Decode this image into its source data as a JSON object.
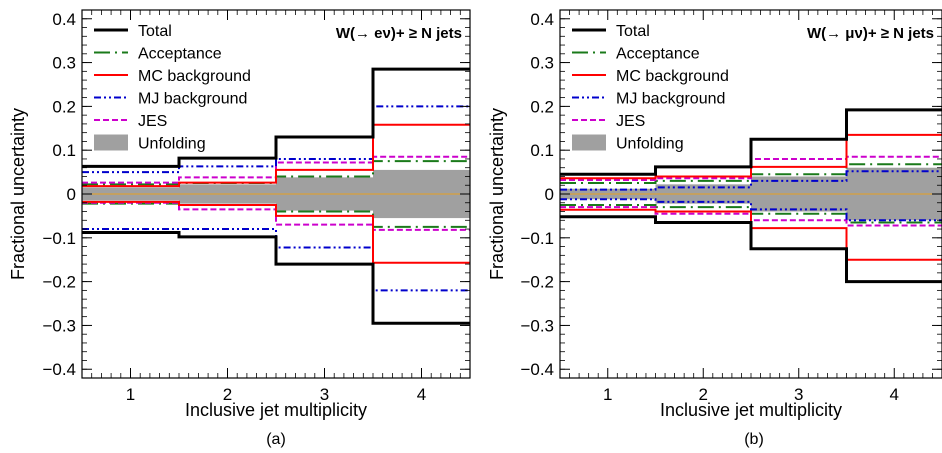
{
  "chart_data": [
    {
      "type": "step",
      "panel_label": "(a)",
      "annotation": "W(→ eν)+ ≥ N jets",
      "xlabel": "Inclusive jet multiplicity",
      "ylabel": "Fractional uncertainty",
      "x_ticks": [
        "1",
        "2",
        "3",
        "4"
      ],
      "xlim": [
        0.5,
        4.5
      ],
      "ylim": [
        -0.42,
        0.42
      ],
      "y_ticks": [
        -0.4,
        -0.3,
        -0.2,
        -0.1,
        0,
        0.1,
        0.2,
        0.3,
        0.4
      ],
      "y_tick_labels": [
        "−0.4",
        "−0.3",
        "−0.2",
        "−0.1",
        "0",
        "0.1",
        "0.2",
        "0.3",
        "0.4"
      ],
      "legend_position": "top-left",
      "series": [
        {
          "name": "Unfolding",
          "color": "#a0a0a0",
          "style": "band",
          "values": [
            0.015,
            0.022,
            0.038,
            0.055
          ]
        },
        {
          "name": "Total",
          "color": "#000000",
          "style": "solid",
          "up": [
            0.063,
            0.082,
            0.13,
            0.285
          ],
          "down": [
            -0.088,
            -0.098,
            -0.16,
            -0.295
          ]
        },
        {
          "name": "Acceptance",
          "color": "#1a7a1a",
          "style": "dash-dot",
          "up": [
            0.022,
            0.025,
            0.04,
            0.075
          ],
          "down": [
            -0.022,
            -0.025,
            -0.04,
            -0.075
          ]
        },
        {
          "name": "MC background",
          "color": "#ff0000",
          "style": "solid",
          "up": [
            0.018,
            0.026,
            0.055,
            0.158
          ],
          "down": [
            -0.018,
            -0.025,
            -0.05,
            -0.157
          ]
        },
        {
          "name": "MJ background",
          "color": "#0000cc",
          "style": "dash-dot-dot",
          "up": [
            0.05,
            0.063,
            0.08,
            0.2
          ],
          "down": [
            -0.08,
            -0.08,
            -0.122,
            -0.22
          ]
        },
        {
          "name": "JES",
          "color": "#cc00cc",
          "style": "dash",
          "up": [
            0.026,
            0.038,
            0.072,
            0.085
          ],
          "down": [
            -0.02,
            -0.035,
            -0.07,
            -0.082
          ]
        }
      ]
    },
    {
      "type": "step",
      "panel_label": "(b)",
      "annotation": "W(→ μν)+ ≥ N jets",
      "xlabel": "Inclusive jet multiplicity",
      "ylabel": "Fractional uncertainty",
      "x_ticks": [
        "1",
        "2",
        "3",
        "4"
      ],
      "xlim": [
        0.5,
        4.5
      ],
      "ylim": [
        -0.42,
        0.42
      ],
      "y_ticks": [
        -0.4,
        -0.3,
        -0.2,
        -0.1,
        0,
        0.1,
        0.2,
        0.3,
        0.4
      ],
      "y_tick_labels": [
        "−0.4",
        "−0.3",
        "−0.2",
        "−0.1",
        "0",
        "0.1",
        "0.2",
        "0.3",
        "0.4"
      ],
      "legend_position": "top-left",
      "series": [
        {
          "name": "Unfolding",
          "color": "#a0a0a0",
          "style": "band",
          "values": [
            0.012,
            0.022,
            0.04,
            0.06
          ]
        },
        {
          "name": "Total",
          "color": "#000000",
          "style": "solid",
          "up": [
            0.045,
            0.062,
            0.125,
            0.192
          ],
          "down": [
            -0.052,
            -0.065,
            -0.125,
            -0.2
          ]
        },
        {
          "name": "Acceptance",
          "color": "#1a7a1a",
          "style": "dash-dot",
          "up": [
            0.025,
            0.03,
            0.045,
            0.068
          ],
          "down": [
            -0.025,
            -0.03,
            -0.045,
            -0.065
          ]
        },
        {
          "name": "MC background",
          "color": "#ff0000",
          "style": "solid",
          "up": [
            0.036,
            0.04,
            0.062,
            0.135
          ],
          "down": [
            -0.036,
            -0.04,
            -0.078,
            -0.15
          ]
        },
        {
          "name": "MJ background",
          "color": "#0000cc",
          "style": "dash-dot-dot",
          "up": [
            0.01,
            0.015,
            0.03,
            0.052
          ],
          "down": [
            -0.012,
            -0.018,
            -0.035,
            -0.06
          ]
        },
        {
          "name": "JES",
          "color": "#cc00cc",
          "style": "dash",
          "up": [
            0.032,
            0.036,
            0.08,
            0.085
          ],
          "down": [
            -0.03,
            -0.045,
            -0.06,
            -0.072
          ]
        }
      ]
    }
  ]
}
